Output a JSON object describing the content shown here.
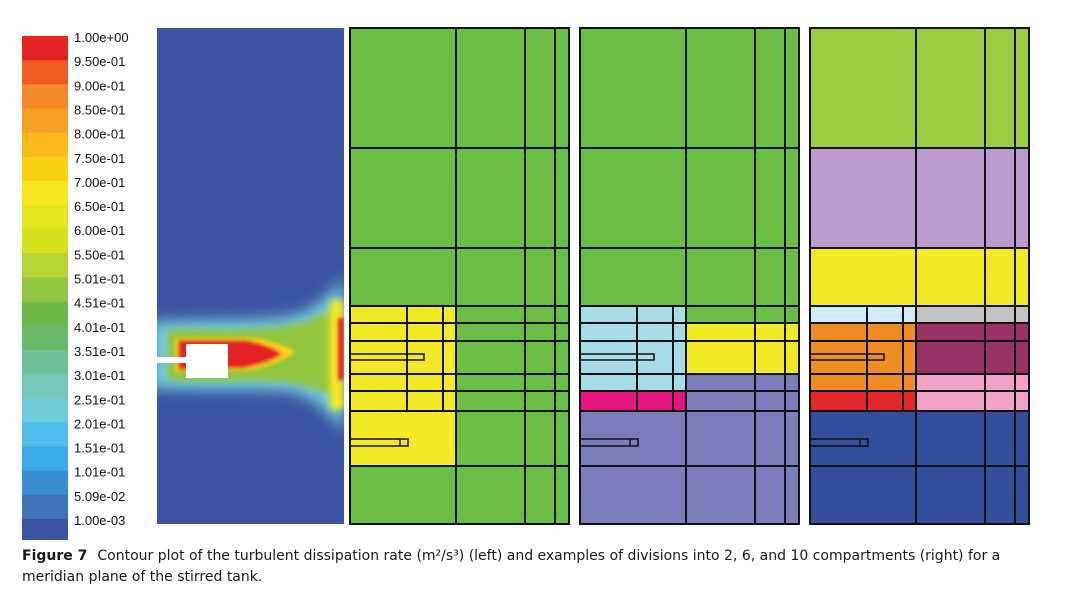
{
  "legend": {
    "labels": [
      "1.00e+00",
      "9.50e-01",
      "9.00e-01",
      "8.50e-01",
      "8.00e-01",
      "7.50e-01",
      "7.00e-01",
      "6.50e-01",
      "6.00e-01",
      "5.50e-01",
      "5.01e-01",
      "4.51e-01",
      "4.01e-01",
      "3.51e-01",
      "3.01e-01",
      "2.51e-01",
      "2.01e-01",
      "1.51e-01",
      "1.01e-01",
      "5.09e-02",
      "1.00e-03"
    ],
    "colors": [
      "#e52422",
      "#ef5b22",
      "#f5882a",
      "#f6a023",
      "#fab81a",
      "#fbd014",
      "#f6e922",
      "#e6e81f",
      "#d4e11c",
      "#b6d433",
      "#94c540",
      "#6bb944",
      "#6ab96b",
      "#6ec29a",
      "#75c7b8",
      "#6fcbd8",
      "#4fbde9",
      "#3aabe5",
      "#3a8ed2",
      "#3f72bb",
      "#3c53a3"
    ]
  },
  "panels": {
    "contour": {
      "background": "#3c53a3",
      "hot": "#e52422"
    },
    "compartments": [
      {
        "name": "2 compartments",
        "colors": {
          "primary": "#6abd45",
          "secondary": "#f2ea24"
        }
      },
      {
        "name": "6 compartments",
        "colors": {
          "primary": "#6abd45",
          "light": "#a7dbe6",
          "yellow": "#f2ea24",
          "magenta": "#e5157e",
          "purple": "#7b7dba"
        }
      },
      {
        "name": "10 compartments",
        "colors": {
          "olive": "#9dcb42",
          "lavender": "#b99ccb",
          "yellow": "#f2ea24",
          "paleblue": "#d2ecf4",
          "grey": "#c2c2c2",
          "orange": "#ef8c24",
          "plum": "#993366",
          "red": "#e3262b",
          "pink": "#f1a1c6",
          "navy": "#344e9d"
        }
      }
    ]
  },
  "caption": {
    "label": "Figure 7",
    "text": "Contour plot of the turbulent dissipation rate (m²/s³) (left) and examples of divisions into 2, 6, and 10 compartments (right) for a meridian plane of the stirred tank."
  }
}
